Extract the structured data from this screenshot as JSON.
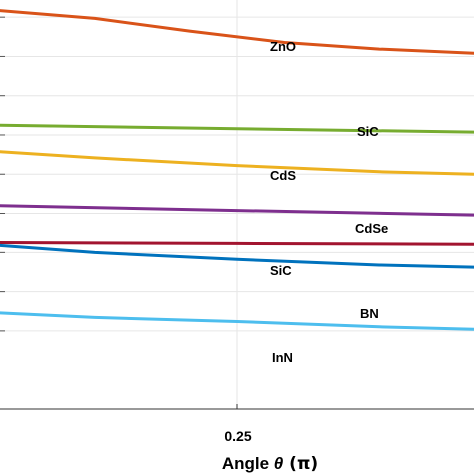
{
  "chart_data": {
    "type": "line",
    "xlabel_prefix": "Angle ",
    "xlabel_symbol": "θ",
    "xlabel_unit": "(π)",
    "xlim": [
      0.0,
      0.5
    ],
    "ylim": [
      0,
      10
    ],
    "grid": true,
    "x_ticks": [
      {
        "value": 0.25,
        "label": "0.25"
      }
    ],
    "y_gridlines": [
      9.58,
      8.62,
      7.66,
      6.7,
      5.74,
      4.78,
      3.83,
      2.87,
      1.91
    ],
    "series": [
      {
        "name": "ZnO",
        "color": "#D95319",
        "x": [
          0.0,
          0.1,
          0.2,
          0.3,
          0.4,
          0.5
        ],
        "y": [
          9.74,
          9.55,
          9.24,
          8.96,
          8.8,
          8.7
        ]
      },
      {
        "name": "SiC",
        "color": "#77AC30",
        "x": [
          0.0,
          0.25,
          0.5
        ],
        "y": [
          6.94,
          6.85,
          6.77
        ]
      },
      {
        "name": "CdS",
        "color": "#EDB120",
        "x": [
          0.0,
          0.1,
          0.25,
          0.4,
          0.5
        ],
        "y": [
          6.29,
          6.14,
          5.95,
          5.8,
          5.74
        ]
      },
      {
        "name": "CdSe",
        "color": "#7E2F8E",
        "x": [
          0.0,
          0.25,
          0.5
        ],
        "y": [
          4.97,
          4.85,
          4.74
        ]
      },
      {
        "name": "SiC",
        "color": "#A2142F",
        "x": [
          0.0,
          0.25,
          0.5
        ],
        "y": [
          4.07,
          4.05,
          4.03
        ]
      },
      {
        "name": "BN",
        "color": "#0072BD",
        "x": [
          0.0,
          0.1,
          0.25,
          0.4,
          0.5
        ],
        "y": [
          4.0,
          3.83,
          3.66,
          3.52,
          3.47
        ]
      },
      {
        "name": "InN",
        "color": "#4DBEEE",
        "x": [
          0.0,
          0.1,
          0.25,
          0.4,
          0.5
        ],
        "y": [
          2.35,
          2.24,
          2.14,
          2.01,
          1.95
        ]
      }
    ]
  }
}
